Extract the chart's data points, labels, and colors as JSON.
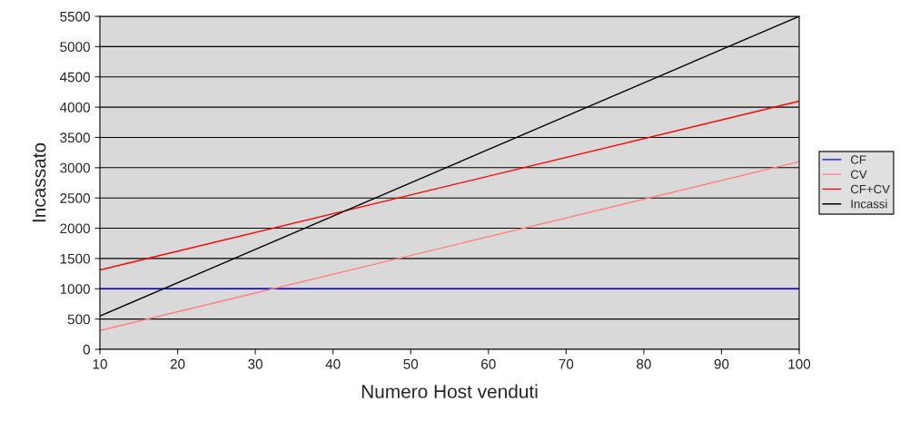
{
  "chart_data": {
    "type": "line",
    "xlabel": "Numero Host venduti",
    "ylabel": "Incassato",
    "x": [
      10,
      100
    ],
    "series": [
      {
        "name": "CF",
        "color": "#0000ff",
        "values": [
          1000,
          1000
        ]
      },
      {
        "name": "CV",
        "color": "#ff8080",
        "values": [
          310,
          3100
        ]
      },
      {
        "name": "CF+CV",
        "color": "#ff0000",
        "values": [
          1310,
          4100
        ]
      },
      {
        "name": "Incassi",
        "color": "#000000",
        "values": [
          550,
          5500
        ]
      }
    ],
    "xlim": [
      10,
      100
    ],
    "xticks": [
      10,
      20,
      30,
      40,
      50,
      60,
      70,
      80,
      90,
      100
    ],
    "ylim": [
      0,
      5500
    ],
    "yticks": [
      0,
      500,
      1000,
      1500,
      2000,
      2500,
      3000,
      3500,
      4000,
      4500,
      5000,
      5500
    ],
    "grid": "y",
    "legend": "right",
    "marker": "none",
    "line_style": "solid"
  }
}
